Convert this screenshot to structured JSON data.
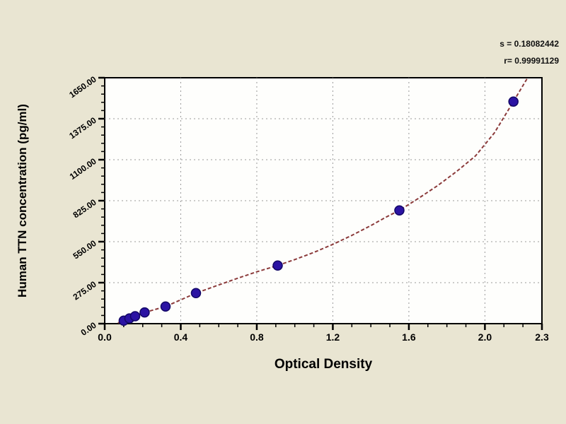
{
  "figure": {
    "background_color": "#e9e5d2",
    "plot_background_color": "#fefefc",
    "stats_line1": "s = 0.18082442",
    "stats_line2": "r= 0.99991129"
  },
  "chart_data": {
    "type": "scatter",
    "title": "",
    "xlabel": "Optical Density",
    "ylabel": "Human TTN concentration (pg/ml)",
    "xlim": [
      0.0,
      2.3
    ],
    "ylim": [
      0,
      1650
    ],
    "x_major_ticks": [
      0.0,
      0.4,
      0.8,
      1.2,
      1.6,
      2.0,
      2.3
    ],
    "x_tick_labels": [
      "0.0",
      "0.4",
      "0.8",
      "1.2",
      "1.6",
      "2.0",
      "2.3"
    ],
    "x_minor_step": 0.1,
    "y_major_ticks": [
      0,
      275,
      550,
      825,
      1100,
      1375,
      1650
    ],
    "y_tick_labels": [
      "0.00",
      "275.00",
      "550.00",
      "825.00",
      "1100.00",
      "1375.00",
      "1650.00"
    ],
    "y_minor_step": 55,
    "x_gridlines": [
      0.4,
      0.8,
      1.2,
      1.6,
      2.0
    ],
    "y_gridlines": [
      275,
      550,
      825,
      1100,
      1375
    ],
    "grid_style": "dashed",
    "legend": "none",
    "annotations": [
      "s = 0.18082442",
      "r= 0.99991129"
    ],
    "points": [
      {
        "x": 0.1,
        "y": 20
      },
      {
        "x": 0.13,
        "y": 35
      },
      {
        "x": 0.16,
        "y": 50
      },
      {
        "x": 0.21,
        "y": 75
      },
      {
        "x": 0.32,
        "y": 115
      },
      {
        "x": 0.48,
        "y": 205
      },
      {
        "x": 0.91,
        "y": 390
      },
      {
        "x": 1.55,
        "y": 760
      },
      {
        "x": 2.15,
        "y": 1490
      }
    ],
    "curve_samples": [
      [
        0.07,
        5
      ],
      [
        0.1,
        22
      ],
      [
        0.13,
        38
      ],
      [
        0.16,
        52
      ],
      [
        0.21,
        75
      ],
      [
        0.32,
        115
      ],
      [
        0.4,
        160
      ],
      [
        0.48,
        205
      ],
      [
        0.6,
        260
      ],
      [
        0.7,
        305
      ],
      [
        0.8,
        348
      ],
      [
        0.91,
        390
      ],
      [
        1.0,
        430
      ],
      [
        1.1,
        478
      ],
      [
        1.2,
        532
      ],
      [
        1.3,
        592
      ],
      [
        1.4,
        658
      ],
      [
        1.48,
        715
      ],
      [
        1.55,
        760
      ],
      [
        1.65,
        840
      ],
      [
        1.75,
        925
      ],
      [
        1.85,
        1020
      ],
      [
        1.95,
        1125
      ],
      [
        2.05,
        1280
      ],
      [
        2.15,
        1490
      ],
      [
        2.22,
        1640
      ],
      [
        2.27,
        1760
      ]
    ],
    "colors": {
      "point_fill": "#2b13a3",
      "point_stroke": "#120766",
      "curve": "#8b3a3a",
      "gridline": "#999999",
      "axis": "#000000"
    }
  }
}
